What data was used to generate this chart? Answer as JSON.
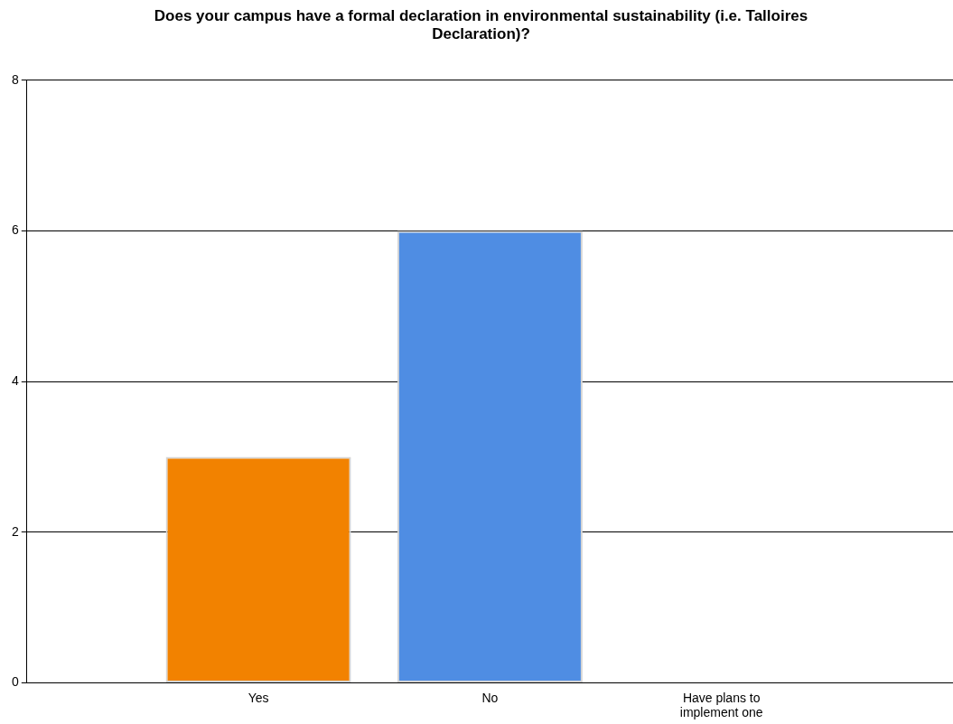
{
  "chart_data": {
    "type": "bar",
    "title": "Does your campus have a formal declaration in environmental sustainability (i.e. Talloires Declaration)?",
    "categories": [
      "Yes",
      "No",
      "Have plans to implement one"
    ],
    "values": [
      3,
      6,
      0
    ],
    "colors": [
      "#f28200",
      "#4f8de3",
      "#b0b0b0"
    ],
    "ylim": [
      0,
      8
    ],
    "yticks": [
      0,
      2,
      4,
      6,
      8
    ],
    "grid": "y"
  }
}
